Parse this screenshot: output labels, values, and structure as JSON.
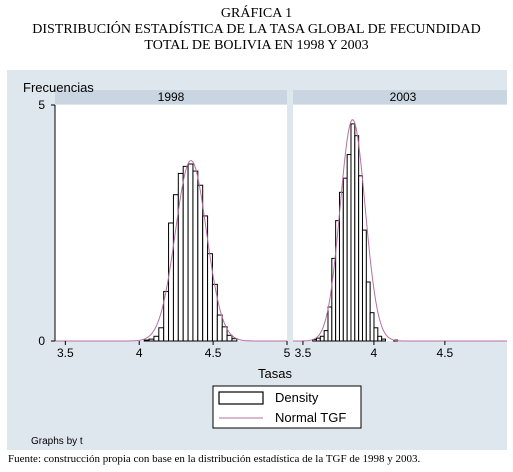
{
  "heading": {
    "line1": "GRÁFICA 1",
    "line2": "DISTRIBUCIÓN ESTADÍSTICA DE LA TASA GLOBAL DE FECUNDIDAD",
    "line3": "TOTAL DE BOLIVIA EN 1998 Y 2003"
  },
  "footer": "Fuente: construcción propia con base en la distribución estadística de la TGF de 1998 y 2003.",
  "colors": {
    "background": "#dfe7ee",
    "plot": "#ffffff",
    "strip": "#c9d6e1",
    "normal_line": "#b86fa5",
    "bar_stroke": "#000000"
  },
  "chart_data": {
    "type": "bar",
    "ylabel": "Frecuencias",
    "xlabel": "Tasas",
    "note": "Graphs by t",
    "ylim": [
      0,
      5
    ],
    "yticks": [
      0,
      5
    ],
    "legend": {
      "placement": "bottom",
      "entries": [
        "Density",
        "Normal TGF"
      ]
    },
    "panels": [
      {
        "name": "1998",
        "xlim": [
          3.43,
          5.0
        ],
        "xticks": [
          "3.5",
          "4",
          "4.5",
          "5"
        ],
        "bin_width": 0.033,
        "bins": [
          {
            "x": 4.05,
            "y": 0.02
          },
          {
            "x": 4.083,
            "y": 0.04
          },
          {
            "x": 4.116,
            "y": 0.1
          },
          {
            "x": 4.149,
            "y": 0.28
          },
          {
            "x": 4.182,
            "y": 1.05
          },
          {
            "x": 4.215,
            "y": 2.5
          },
          {
            "x": 4.248,
            "y": 3.1
          },
          {
            "x": 4.281,
            "y": 3.55
          },
          {
            "x": 4.314,
            "y": 3.7
          },
          {
            "x": 4.347,
            "y": 3.75
          },
          {
            "x": 4.38,
            "y": 3.6
          },
          {
            "x": 4.413,
            "y": 3.3
          },
          {
            "x": 4.446,
            "y": 2.65
          },
          {
            "x": 4.479,
            "y": 1.85
          },
          {
            "x": 4.512,
            "y": 1.2
          },
          {
            "x": 4.545,
            "y": 0.55
          },
          {
            "x": 4.578,
            "y": 0.3
          },
          {
            "x": 4.611,
            "y": 0.12
          },
          {
            "x": 4.644,
            "y": 0.05
          }
        ],
        "normal": {
          "mean": 4.35,
          "sd": 0.105
        }
      },
      {
        "name": "2003",
        "xlim": [
          3.43,
          4.98
        ],
        "xticks": [
          "3.5",
          "4",
          "4.5"
        ],
        "bin_width": 0.027,
        "bins": [
          {
            "x": 3.582,
            "y": 0.03
          },
          {
            "x": 3.609,
            "y": 0.06
          },
          {
            "x": 3.636,
            "y": 0.1
          },
          {
            "x": 3.663,
            "y": 0.22
          },
          {
            "x": 3.69,
            "y": 0.72
          },
          {
            "x": 3.717,
            "y": 1.75
          },
          {
            "x": 3.744,
            "y": 2.55
          },
          {
            "x": 3.771,
            "y": 3.15
          },
          {
            "x": 3.798,
            "y": 3.45
          },
          {
            "x": 3.825,
            "y": 3.95
          },
          {
            "x": 3.852,
            "y": 4.6
          },
          {
            "x": 3.879,
            "y": 4.35
          },
          {
            "x": 3.906,
            "y": 3.5
          },
          {
            "x": 3.933,
            "y": 2.35
          },
          {
            "x": 3.96,
            "y": 1.25
          },
          {
            "x": 3.987,
            "y": 0.6
          },
          {
            "x": 4.014,
            "y": 0.28
          },
          {
            "x": 4.041,
            "y": 0.1
          },
          {
            "x": 4.068,
            "y": 0.04
          },
          {
            "x": 4.153,
            "y": 0.02
          }
        ],
        "normal": {
          "mean": 3.85,
          "sd": 0.088
        }
      }
    ]
  }
}
